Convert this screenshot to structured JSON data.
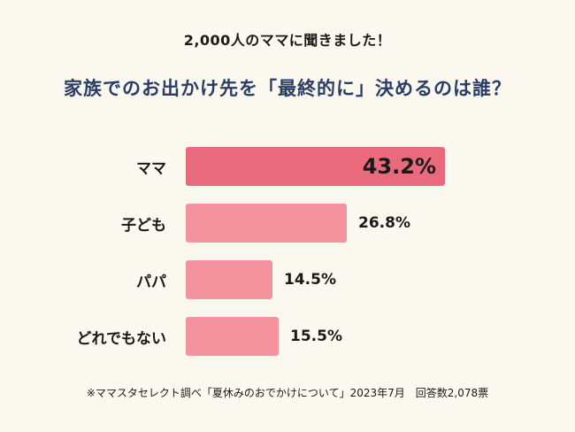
{
  "header": {
    "subtitle": "2,000人のママに聞きました！",
    "title": "家族でのお出かけ先を「最終的に」決めるのは誰？"
  },
  "footer": {
    "note": "※ママスタセレクト調べ「夏休みのおでかけについて」2023年7月　回答数2,078票"
  },
  "colors": {
    "background": "#fbf8ef",
    "title": "#2a3d66",
    "text": "#1a1a1a",
    "bar_highlight": "#e96a7d",
    "bar_default": "#f4929d"
  },
  "chart_data": {
    "type": "bar",
    "orientation": "horizontal",
    "title": "家族でのお出かけ先を「最終的に」決めるのは誰？",
    "categories": [
      "ママ",
      "子ども",
      "パパ",
      "どれでもない"
    ],
    "values": [
      43.2,
      26.8,
      14.5,
      15.5
    ],
    "value_labels": [
      "43.2%",
      "26.8%",
      "14.5%",
      "15.5%"
    ],
    "unit": "%",
    "highlight_index": 0,
    "xlabel": "",
    "ylabel": "",
    "xlim": [
      0,
      45
    ],
    "grid": false,
    "legend": false
  }
}
